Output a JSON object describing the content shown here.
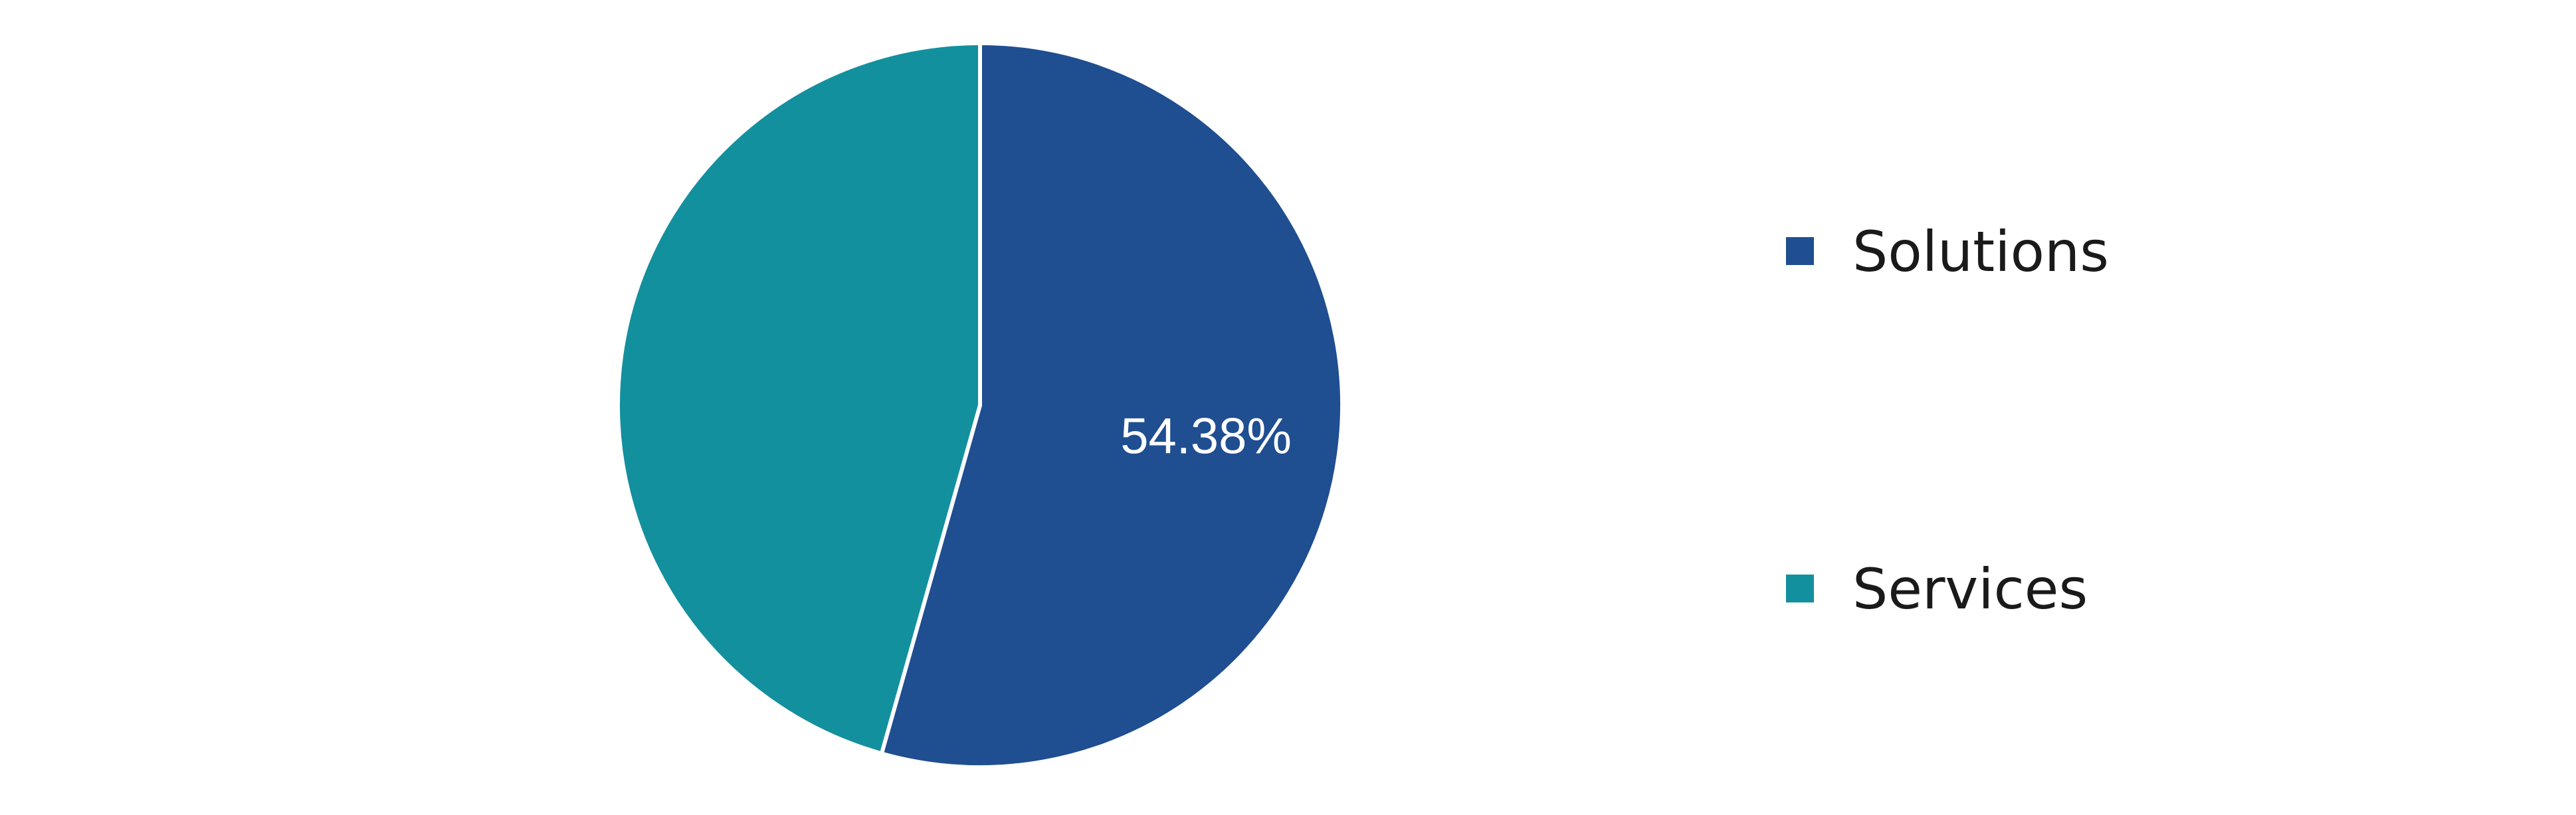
{
  "chart_data": {
    "type": "pie",
    "slices": [
      {
        "label": "Solutions",
        "value": 54.38,
        "color": "#1f4e91",
        "data_label": "54.38%"
      },
      {
        "label": "Services",
        "value": 45.62,
        "color": "#13909e",
        "data_label": ""
      }
    ],
    "legend_position": "right"
  }
}
